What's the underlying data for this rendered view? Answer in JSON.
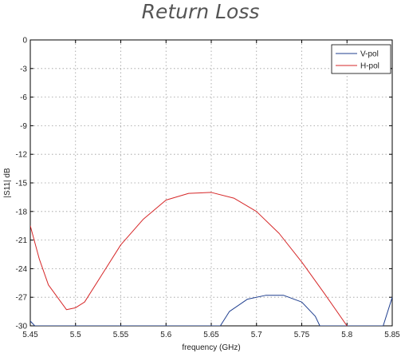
{
  "chart_data": {
    "type": "line",
    "title": "Return Loss",
    "xlabel": "frequency (GHz)",
    "ylabel": "|S11| dB",
    "xlim": [
      5.45,
      5.85
    ],
    "ylim": [
      -30,
      0
    ],
    "xticks": [
      5.45,
      5.5,
      5.55,
      5.6,
      5.65,
      5.7,
      5.75,
      5.8,
      5.85
    ],
    "xtick_labels": [
      "5.45",
      "5.5",
      "5.55",
      "5.6",
      "5.65",
      "5.7",
      "5.75",
      "5.8",
      "5.85"
    ],
    "yticks": [
      0,
      -3,
      -6,
      -9,
      -12,
      -15,
      -18,
      -21,
      -24,
      -27,
      -30
    ],
    "ytick_labels": [
      "0",
      "-3",
      "-6",
      "-9",
      "-12",
      "-15",
      "-18",
      "-21",
      "-24",
      "-27",
      "-30"
    ],
    "grid": true,
    "legend_position": "top-right",
    "series": [
      {
        "name": "V-pol",
        "color": "#1f3f8f",
        "x": [
          5.45,
          5.455,
          5.66,
          5.67,
          5.69,
          5.71,
          5.73,
          5.75,
          5.765,
          5.77,
          5.84,
          5.85
        ],
        "y": [
          -29.5,
          -30,
          -30,
          -28.5,
          -27.2,
          -26.8,
          -26.8,
          -27.5,
          -29,
          -30,
          -30,
          -27
        ]
      },
      {
        "name": "H-pol",
        "color": "#d62728",
        "x": [
          5.45,
          5.46,
          5.47,
          5.49,
          5.5,
          5.51,
          5.53,
          5.55,
          5.575,
          5.6,
          5.625,
          5.65,
          5.675,
          5.7,
          5.725,
          5.75,
          5.775,
          5.8
        ],
        "y": [
          -19.5,
          -23.0,
          -25.7,
          -28.3,
          -28.1,
          -27.5,
          -24.5,
          -21.5,
          -18.8,
          -16.8,
          -16.1,
          -16.0,
          -16.6,
          -18.0,
          -20.3,
          -23.3,
          -26.6,
          -30.0
        ]
      }
    ]
  }
}
